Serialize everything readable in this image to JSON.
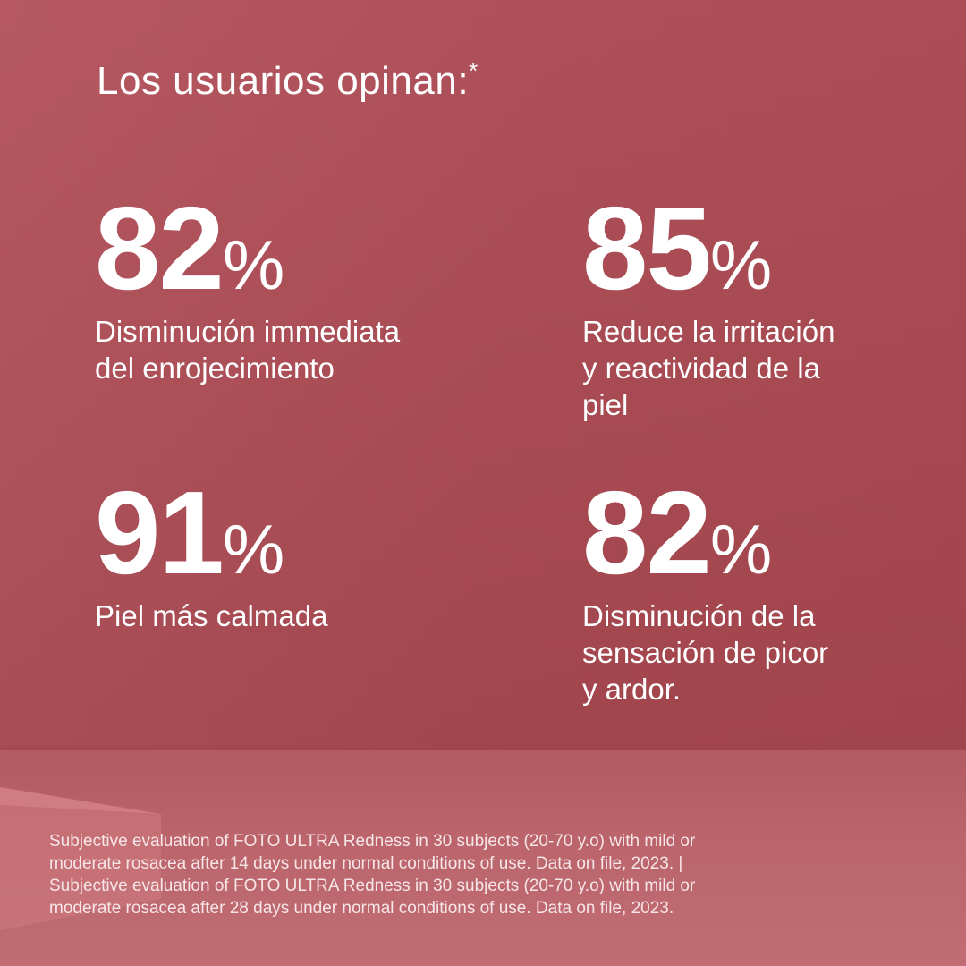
{
  "title": "Los usuarios opinan:",
  "title_mark": "*",
  "stats": [
    {
      "value": "82",
      "unit": "%",
      "label": [
        "Disminución immediata",
        "del enrojecimiento"
      ]
    },
    {
      "value": "85",
      "unit": "%",
      "label": [
        "Reduce la irritación",
        "y reactividad de la",
        "piel"
      ]
    },
    {
      "value": "91",
      "unit": "%",
      "label": [
        "Piel más calmada"
      ]
    },
    {
      "value": "82",
      "unit": "%",
      "label": [
        "Disminución de la",
        "sensación de picor",
        "y ardor."
      ]
    }
  ],
  "footnote": [
    "Subjective evaluation of FOTO ULTRA Redness in 30 subjects (20-70 y.o) with mild or",
    "moderate rosacea after 14 days under normal conditions of use. Data on file, 2023. |",
    "Subjective evaluation of FOTO ULTRA Redness in 30 subjects (20-70 y.o) with mild or",
    "moderate rosacea after 28 days under normal conditions of use. Data on file, 2023."
  ],
  "colors": {
    "background": "#ab4a53",
    "floor": "#bb646b",
    "text": "#ffffff"
  }
}
